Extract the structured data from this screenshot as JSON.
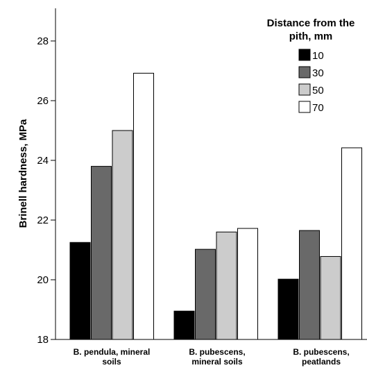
{
  "chart_data": {
    "type": "bar",
    "ylabel": "Brinell hardness, MPa",
    "xlabel": "",
    "ylim": [
      18,
      29
    ],
    "yticks": [
      "18",
      "20",
      "22",
      "24",
      "26",
      "28"
    ],
    "grid": false,
    "legend_position": "top-right",
    "legend_title_lines": [
      "Distance from the",
      "pith, mm"
    ],
    "categories": [
      [
        "B. pendula, mineral",
        "soils"
      ],
      [
        "B. pubescens,",
        "mineral soils"
      ],
      [
        "B. pubescens,",
        "peatlands"
      ]
    ],
    "series": [
      {
        "name": "10",
        "color": "#000000",
        "values": [
          21.25,
          18.95,
          20.02
        ]
      },
      {
        "name": "30",
        "color": "#696969",
        "values": [
          23.8,
          21.02,
          21.65
        ]
      },
      {
        "name": "50",
        "color": "#cccccc",
        "values": [
          25.0,
          21.6,
          20.78
        ]
      },
      {
        "name": "70",
        "color": "#ffffff",
        "values": [
          26.92,
          21.72,
          24.42
        ]
      }
    ]
  }
}
